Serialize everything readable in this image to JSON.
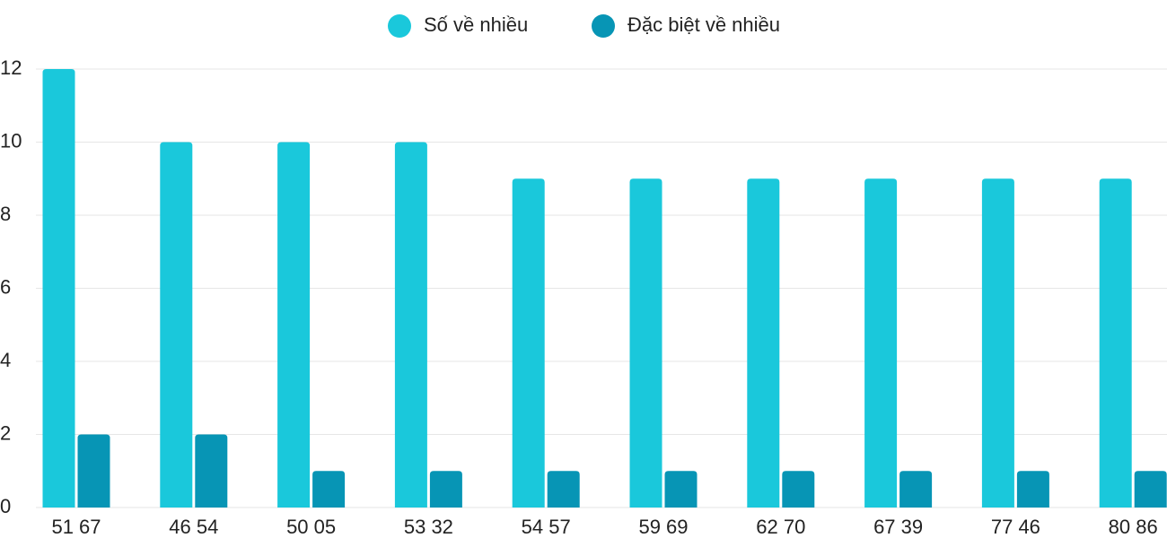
{
  "chart_data": {
    "type": "bar",
    "categories": [
      "51 67",
      "46 54",
      "50 05",
      "53 32",
      "54 57",
      "59 69",
      "62 70",
      "67 39",
      "77 46",
      "80 86"
    ],
    "series": [
      {
        "name": "Số về nhiều",
        "color": "#1ac8db",
        "values": [
          12,
          10,
          10,
          10,
          9,
          9,
          9,
          9,
          9,
          9
        ]
      },
      {
        "name": "Đặc biệt về nhiều",
        "color": "#0795b5",
        "values": [
          2,
          2,
          1,
          1,
          1,
          1,
          1,
          1,
          1,
          1
        ]
      }
    ],
    "ylim": [
      0,
      12
    ],
    "yticks": [
      0,
      2,
      4,
      6,
      8,
      10,
      12
    ],
    "grid": true,
    "legend": "top"
  }
}
